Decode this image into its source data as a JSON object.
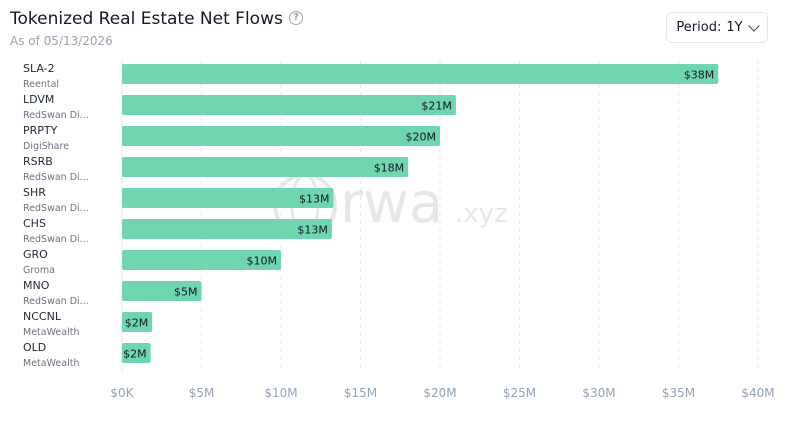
{
  "header": {
    "title": "Tokenized Real Estate Net Flows",
    "help_icon": "question-circle-icon",
    "as_of": "As of 05/13/2026"
  },
  "controls": {
    "period_label": "Period:",
    "period_value": "1Y",
    "period_icon": "chevron-down-icon"
  },
  "watermark": {
    "main": "rwa",
    "suffix": ".xyz"
  },
  "colors": {
    "bar": "#6fd6b0",
    "grid": "#e5e7eb",
    "axis_text": "#94a3b8",
    "label_text": "#1f2937",
    "sub_text": "#6b7280"
  },
  "chart_data": {
    "type": "bar",
    "orientation": "horizontal",
    "categories": [
      "SLA-2",
      "LDVM",
      "PRPTY",
      "RSRB",
      "SHR",
      "CHS",
      "GRO",
      "MNO",
      "NCCNL",
      "OLD"
    ],
    "subtitles": [
      "Reental",
      "RedSwan Di...",
      "DigiShare",
      "RedSwan Di...",
      "RedSwan Di...",
      "RedSwan Di...",
      "Groma",
      "RedSwan Di...",
      "MetaWealth",
      "MetaWealth"
    ],
    "values": [
      37.5,
      21,
      20,
      18,
      13.3,
      13.2,
      10,
      5,
      1.9,
      1.8
    ],
    "data_labels": [
      "$38M",
      "$21M",
      "$20M",
      "$18M",
      "$13M",
      "$13M",
      "$10M",
      "$5M",
      "$2M",
      "$2M"
    ],
    "xlim": [
      0,
      40
    ],
    "xticks": [
      0,
      5,
      10,
      15,
      20,
      25,
      30,
      35,
      40
    ],
    "xtick_labels": [
      "$0K",
      "$5M",
      "$10M",
      "$15M",
      "$20M",
      "$25M",
      "$30M",
      "$35M",
      "$40M"
    ],
    "grid": true
  }
}
